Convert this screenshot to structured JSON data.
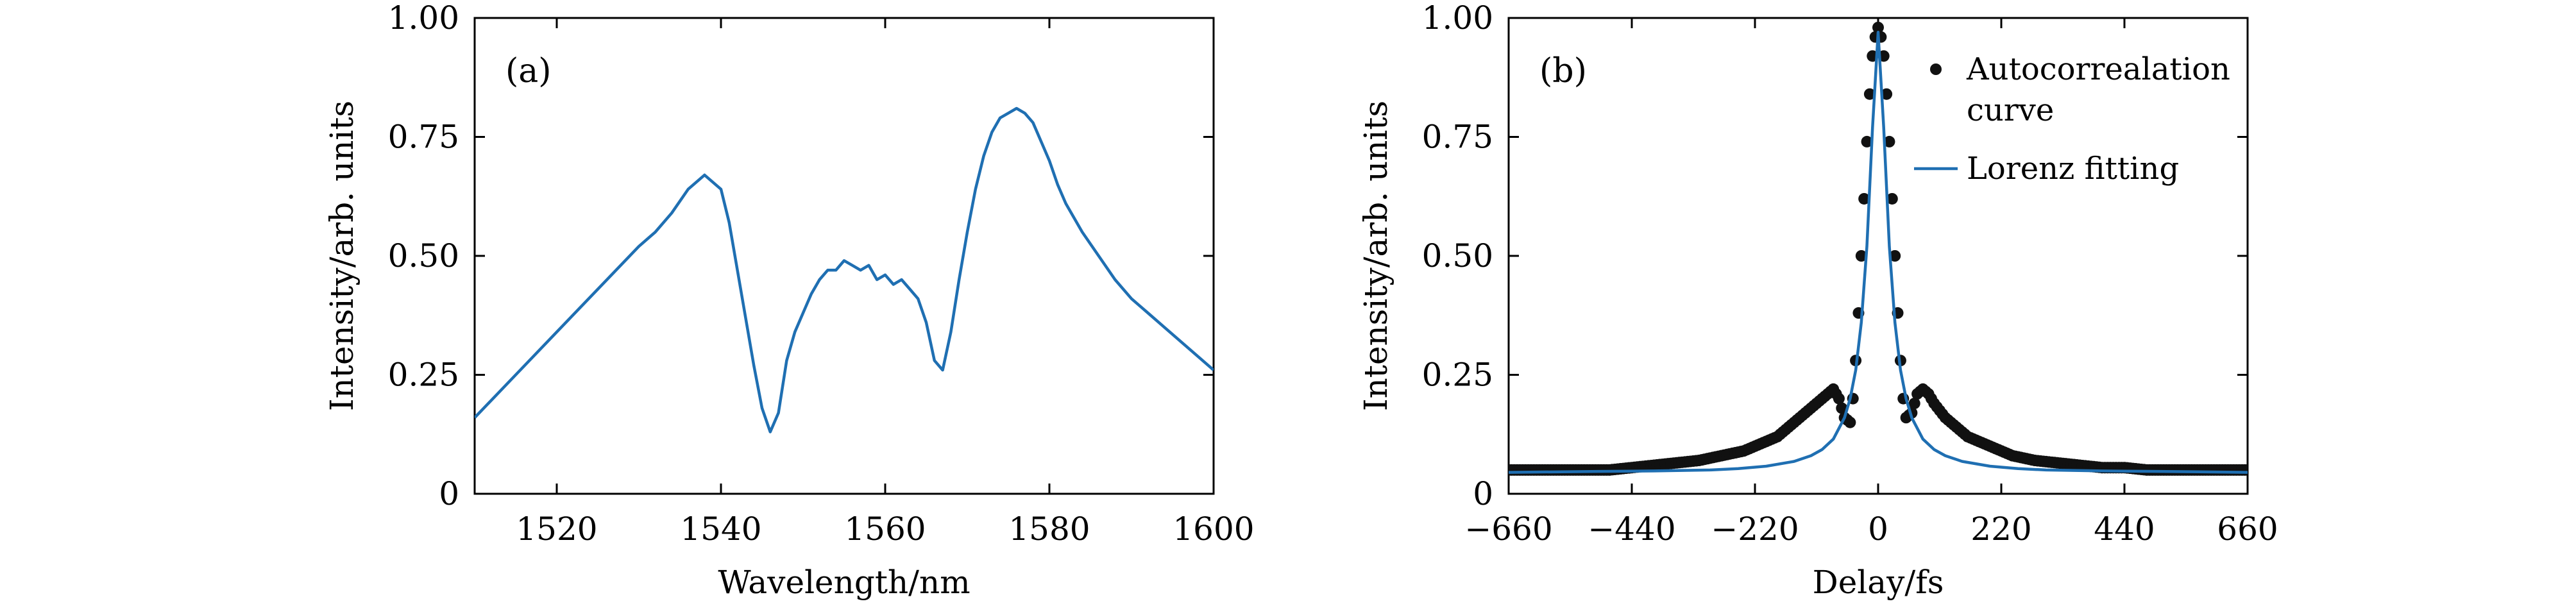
{
  "chart_data": [
    {
      "panel_label": "(a)",
      "type": "line",
      "title": "",
      "xlabel": "Wavelength/nm",
      "ylabel": "Intensity/arb. units",
      "xlim": [
        1510,
        1600
      ],
      "ylim": [
        0,
        1.0
      ],
      "xticks": [
        1520,
        1540,
        1560,
        1580,
        1600
      ],
      "xtick_labels": [
        "1520",
        "1540",
        "1560",
        "1580",
        "1600"
      ],
      "yticks": [
        0,
        0.25,
        0.5,
        0.75,
        1.0
      ],
      "ytick_labels": [
        "0",
        "0.25",
        "0.50",
        "0.75",
        "1.00"
      ],
      "grid": false,
      "series": [
        {
          "color": "#1f6fb2",
          "x": [
            1510,
            1515,
            1520,
            1525,
            1530,
            1532,
            1534,
            1536,
            1538,
            1540,
            1541,
            1542,
            1543,
            1544,
            1545,
            1546,
            1547,
            1548,
            1549,
            1550,
            1551,
            1552,
            1553,
            1554,
            1555,
            1556,
            1557,
            1558,
            1559,
            1560,
            1561,
            1562,
            1563,
            1564,
            1565,
            1566,
            1567,
            1568,
            1569,
            1570,
            1571,
            1572,
            1573,
            1574,
            1575,
            1576,
            1577,
            1578,
            1579,
            1580,
            1581,
            1582,
            1583,
            1584,
            1586,
            1588,
            1590,
            1592,
            1594,
            1596,
            1598,
            1600
          ],
          "y": [
            0.16,
            0.25,
            0.34,
            0.43,
            0.52,
            0.55,
            0.59,
            0.64,
            0.67,
            0.64,
            0.57,
            0.47,
            0.37,
            0.27,
            0.18,
            0.13,
            0.17,
            0.28,
            0.34,
            0.38,
            0.42,
            0.45,
            0.47,
            0.47,
            0.49,
            0.48,
            0.47,
            0.48,
            0.45,
            0.46,
            0.44,
            0.45,
            0.43,
            0.41,
            0.36,
            0.28,
            0.26,
            0.34,
            0.45,
            0.55,
            0.64,
            0.71,
            0.76,
            0.79,
            0.8,
            0.81,
            0.8,
            0.78,
            0.74,
            0.7,
            0.65,
            0.61,
            0.58,
            0.55,
            0.5,
            0.45,
            0.41,
            0.38,
            0.35,
            0.32,
            0.29,
            0.26
          ]
        }
      ]
    },
    {
      "panel_label": "(b)",
      "type": "line",
      "title": "",
      "xlabel": "Delay/fs",
      "ylabel": "Intensity/arb. units",
      "xlim": [
        -660,
        660
      ],
      "ylim": [
        0,
        1.0
      ],
      "xticks": [
        -660,
        -440,
        -220,
        0,
        220,
        440,
        660
      ],
      "xtick_labels": [
        "−660",
        "−440",
        "−220",
        "0",
        "220",
        "440",
        "660"
      ],
      "yticks": [
        0,
        0.25,
        0.5,
        0.75,
        1.0
      ],
      "ytick_labels": [
        "0",
        "0.25",
        "0.50",
        "0.75",
        "1.00"
      ],
      "grid": false,
      "legend": {
        "position": "top-right",
        "entries": [
          "Autocorrealation curve",
          "Lorenz fitting"
        ]
      },
      "series": [
        {
          "name": "Autocorrealation curve",
          "style": "markers",
          "color": "#111111",
          "x": [
            -660,
            -600,
            -540,
            -480,
            -440,
            -400,
            -360,
            -320,
            -280,
            -240,
            -220,
            -200,
            -180,
            -160,
            -140,
            -120,
            -100,
            -90,
            -80,
            -70,
            -60,
            -50,
            -45,
            -40,
            -35,
            -30,
            -25,
            -20,
            -15,
            -10,
            -5,
            0,
            5,
            10,
            15,
            20,
            25,
            30,
            35,
            40,
            45,
            50,
            60,
            70,
            80,
            90,
            100,
            120,
            140,
            160,
            180,
            200,
            220,
            240,
            280,
            320,
            360,
            400,
            440,
            480,
            540,
            600,
            660
          ],
          "y": [
            0.05,
            0.05,
            0.05,
            0.05,
            0.055,
            0.06,
            0.065,
            0.07,
            0.08,
            0.09,
            0.1,
            0.11,
            0.12,
            0.14,
            0.16,
            0.18,
            0.2,
            0.21,
            0.22,
            0.2,
            0.16,
            0.15,
            0.2,
            0.28,
            0.38,
            0.5,
            0.62,
            0.74,
            0.84,
            0.92,
            0.96,
            0.98,
            0.96,
            0.92,
            0.84,
            0.74,
            0.62,
            0.5,
            0.38,
            0.28,
            0.2,
            0.16,
            0.17,
            0.21,
            0.22,
            0.21,
            0.19,
            0.16,
            0.14,
            0.12,
            0.11,
            0.1,
            0.09,
            0.08,
            0.07,
            0.065,
            0.06,
            0.055,
            0.055,
            0.05,
            0.05,
            0.05,
            0.05
          ]
        },
        {
          "name": "Lorenz fitting",
          "style": "line",
          "color": "#1f6fb2",
          "x": [
            -660,
            -500,
            -400,
            -300,
            -250,
            -200,
            -150,
            -120,
            -100,
            -80,
            -60,
            -50,
            -40,
            -30,
            -20,
            -10,
            0,
            10,
            20,
            30,
            40,
            50,
            60,
            80,
            100,
            120,
            150,
            200,
            250,
            300,
            400,
            500,
            660
          ],
          "y": [
            0.045,
            0.047,
            0.048,
            0.05,
            0.053,
            0.058,
            0.068,
            0.08,
            0.093,
            0.115,
            0.16,
            0.2,
            0.26,
            0.36,
            0.52,
            0.77,
            0.97,
            0.77,
            0.52,
            0.36,
            0.26,
            0.2,
            0.16,
            0.115,
            0.093,
            0.08,
            0.068,
            0.058,
            0.053,
            0.05,
            0.048,
            0.047,
            0.045
          ]
        }
      ]
    }
  ]
}
